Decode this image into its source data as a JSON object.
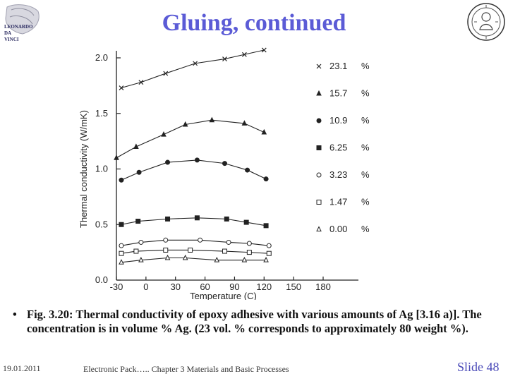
{
  "slide": {
    "title": "Gluing, continued",
    "caption_bullet": "•",
    "caption": "Fig. 3.20: Thermal conductivity of epoxy adhesive with various amounts of Ag [3.16 a)]. The concentration is in volume % Ag. (23 vol. % corresponds to approximately 80 weight  %).",
    "footer_date": "19.01.2011",
    "footer_center": "Electronic Pack….. Chapter 3 Materials and Basic Processes",
    "slide_label": "Slide",
    "slide_number": "48",
    "logo_left_lines": [
      "LEONARDO",
      "DA",
      "VINCI"
    ]
  },
  "chart_data": {
    "type": "line",
    "title": "",
    "xlabel": "Temperature  (C)",
    "ylabel": "Thermal conductivity  (W/mK)",
    "xlim": [
      -30,
      180
    ],
    "ylim": [
      0,
      2.0
    ],
    "xticks": [
      -30,
      0,
      30,
      60,
      90,
      120,
      150,
      180
    ],
    "xtick_labels": [
      "-30",
      "0",
      "30",
      "60",
      "90",
      "120",
      "150",
      "180"
    ],
    "yticks": [
      0,
      0.5,
      1.0,
      1.5,
      2.0
    ],
    "ytick_labels": [
      "0.0",
      "0.5",
      "1.0",
      "1.5",
      "2.0"
    ],
    "grid": false,
    "legend_placement": "right",
    "series": [
      {
        "name": "23.1",
        "unit": "%",
        "marker": "x",
        "x": [
          -25,
          -5,
          20,
          50,
          80,
          100,
          120
        ],
        "y": [
          1.73,
          1.78,
          1.86,
          1.95,
          1.99,
          2.03,
          2.07
        ]
      },
      {
        "name": "15.7",
        "unit": "%",
        "marker": "triangle-filled",
        "x": [
          -30,
          -10,
          18,
          40,
          67,
          100,
          120
        ],
        "y": [
          1.1,
          1.2,
          1.31,
          1.4,
          1.44,
          1.41,
          1.33
        ]
      },
      {
        "name": "10.9",
        "unit": "%",
        "marker": "circle-filled",
        "x": [
          -25,
          -7,
          22,
          52,
          80,
          103,
          122
        ],
        "y": [
          0.9,
          0.97,
          1.06,
          1.08,
          1.05,
          0.99,
          0.91
        ]
      },
      {
        "name": "6.25",
        "unit": "%",
        "marker": "square-filled",
        "x": [
          -25,
          -8,
          22,
          52,
          82,
          102,
          122
        ],
        "y": [
          0.5,
          0.53,
          0.55,
          0.56,
          0.55,
          0.52,
          0.49
        ]
      },
      {
        "name": "3.23",
        "unit": "%",
        "marker": "circle-open",
        "x": [
          -25,
          -5,
          20,
          55,
          84,
          105,
          125
        ],
        "y": [
          0.31,
          0.34,
          0.36,
          0.36,
          0.34,
          0.33,
          0.31
        ]
      },
      {
        "name": "1.47",
        "unit": "%",
        "marker": "square-open",
        "x": [
          -25,
          -10,
          20,
          45,
          80,
          105,
          125
        ],
        "y": [
          0.24,
          0.26,
          0.27,
          0.27,
          0.26,
          0.25,
          0.24
        ]
      },
      {
        "name": "0.00",
        "unit": "%",
        "marker": "triangle-open",
        "x": [
          -25,
          -5,
          22,
          40,
          72,
          100,
          122
        ],
        "y": [
          0.16,
          0.18,
          0.2,
          0.2,
          0.18,
          0.18,
          0.18
        ]
      }
    ]
  }
}
